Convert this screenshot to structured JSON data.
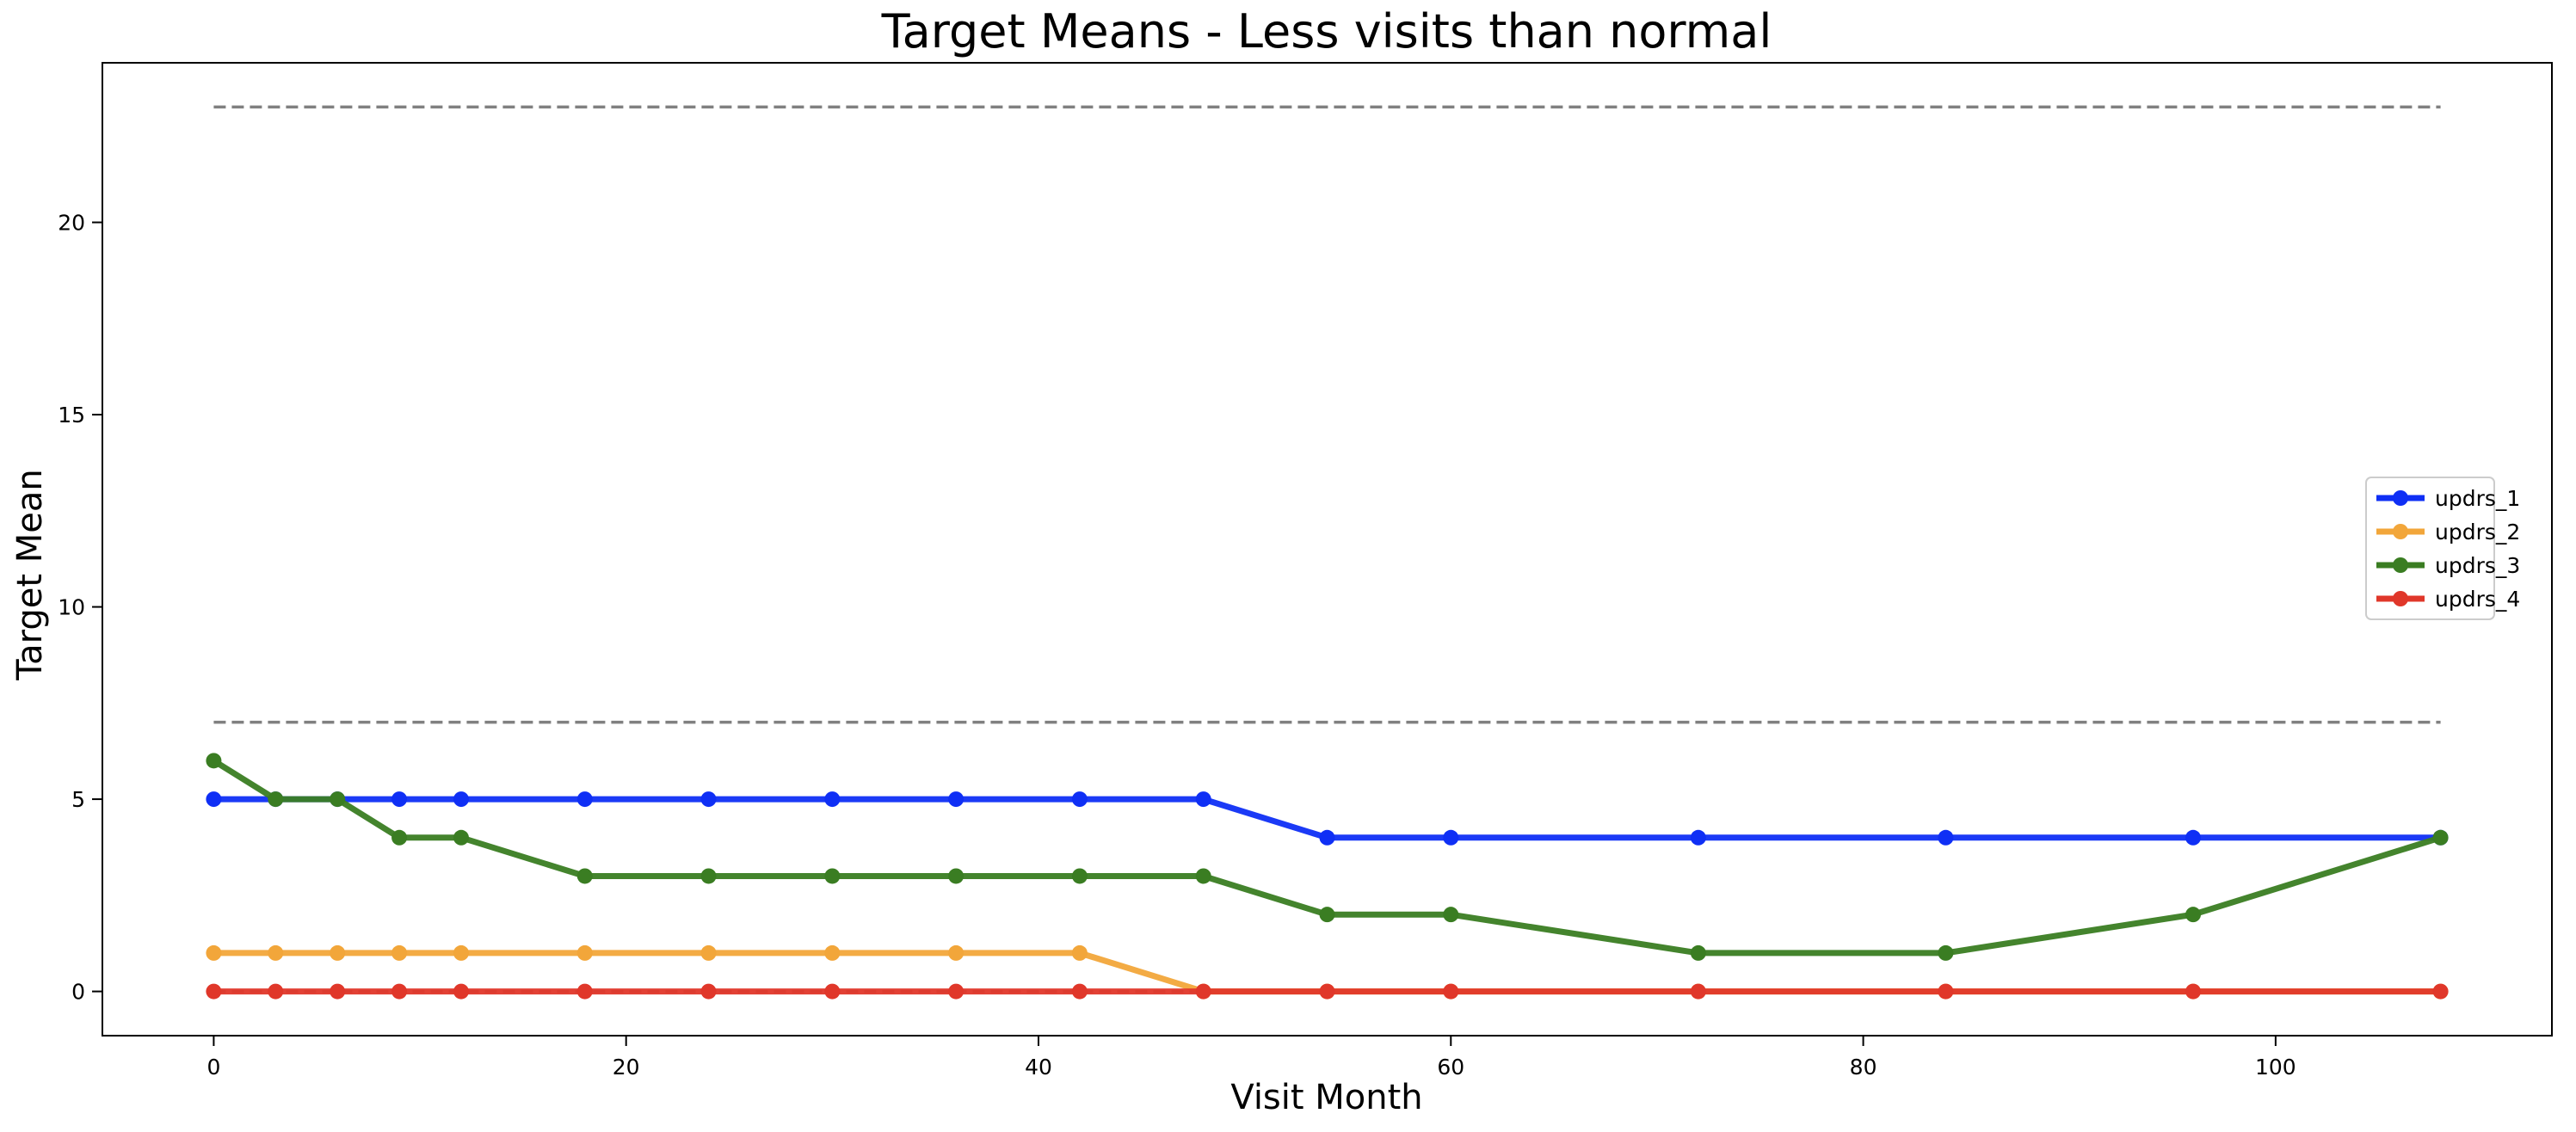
{
  "chart_data": {
    "type": "line",
    "title": "Target Means - Less visits than normal",
    "xlabel": "Visit Month",
    "ylabel": "Target Mean",
    "xlim": [
      -5.4,
      113.4
    ],
    "ylim": [
      -1.15,
      24.15
    ],
    "xticks": [
      0,
      20,
      40,
      60,
      80,
      100
    ],
    "yticks": [
      0,
      5,
      10,
      15,
      20
    ],
    "grid": false,
    "legend_position": "center-right",
    "x": [
      0,
      3,
      6,
      9,
      12,
      18,
      24,
      30,
      36,
      42,
      48,
      54,
      60,
      72,
      84,
      96,
      108
    ],
    "series": [
      {
        "name": "updrs_1",
        "color": "#0f2ff5",
        "values": [
          5,
          5,
          5,
          5,
          5,
          5,
          5,
          5,
          5,
          5,
          5,
          4,
          4,
          4,
          4,
          4,
          4
        ]
      },
      {
        "name": "updrs_2",
        "color": "#f2a63a",
        "values": [
          1,
          1,
          1,
          1,
          1,
          1,
          1,
          1,
          1,
          1,
          0,
          0,
          0,
          0,
          0,
          0,
          0
        ]
      },
      {
        "name": "updrs_3",
        "color": "#3a7d22",
        "values": [
          6,
          5,
          5,
          4,
          4,
          3,
          3,
          3,
          3,
          3,
          3,
          2,
          2,
          1,
          1,
          2,
          4
        ]
      },
      {
        "name": "updrs_4",
        "color": "#e0372a",
        "values": [
          0,
          0,
          0,
          0,
          0,
          0,
          0,
          0,
          0,
          0,
          0,
          0,
          0,
          0,
          0,
          0,
          0
        ]
      }
    ],
    "reference_lines": [
      {
        "y": 23,
        "x_range": [
          0,
          108
        ],
        "style": "dashed",
        "color": "#808080"
      },
      {
        "y": 7,
        "x_range": [
          0,
          108
        ],
        "style": "dashed",
        "color": "#808080"
      },
      {
        "y": 0,
        "x_range": [
          0,
          108
        ],
        "style": "dashed",
        "color": "#808080"
      }
    ]
  }
}
